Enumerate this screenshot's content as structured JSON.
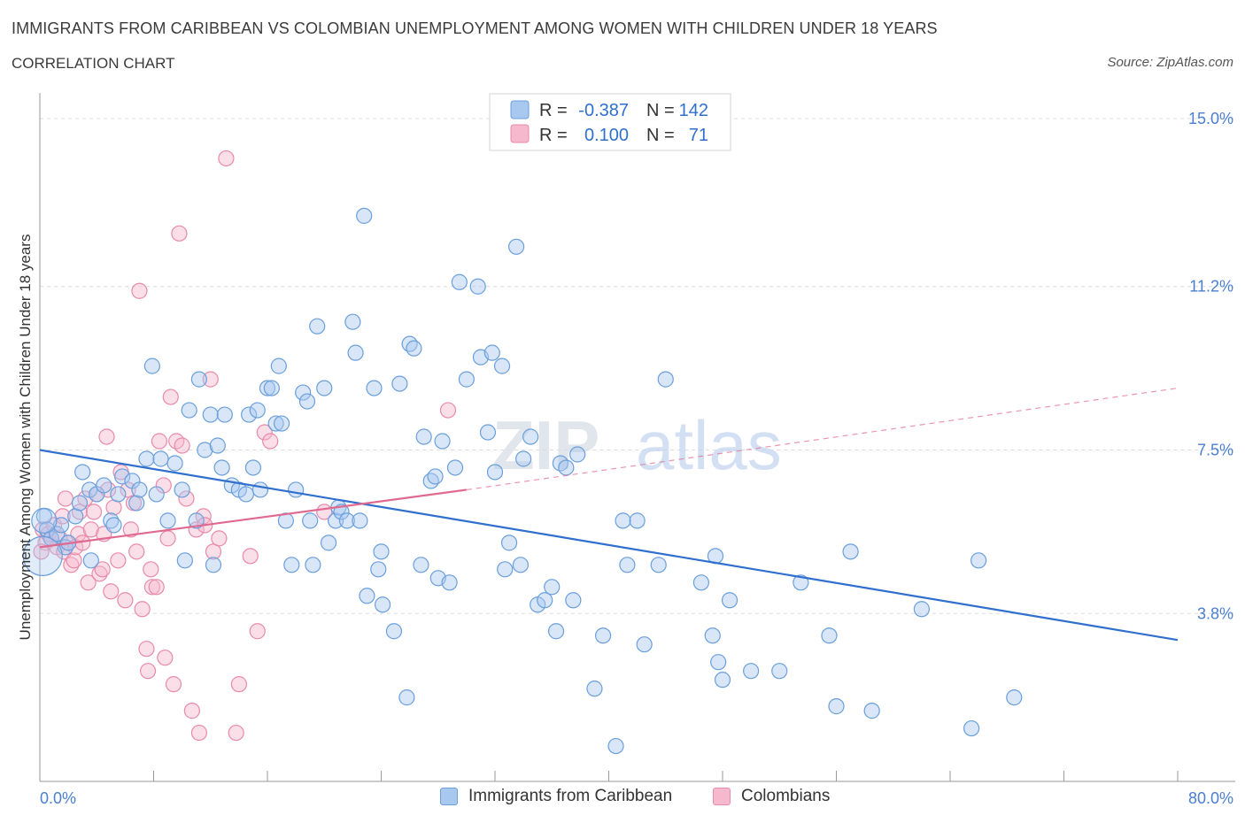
{
  "title": "IMMIGRANTS FROM CARIBBEAN VS COLOMBIAN UNEMPLOYMENT AMONG WOMEN WITH CHILDREN UNDER 18 YEARS",
  "subtitle": "CORRELATION CHART",
  "source": "Source: ZipAtlas.com",
  "watermark": {
    "zip": "ZIP",
    "atlas": "atlas"
  },
  "legend": {
    "r_label": "R =",
    "n_label": "N =",
    "series": [
      {
        "r": "-0.387",
        "n": "142"
      },
      {
        "r": "0.100",
        "n": "71"
      }
    ]
  },
  "bottom_legend": [
    "Immigrants from Caribbean",
    "Colombians"
  ],
  "colors": {
    "blue_fill": "#a9c8f0",
    "blue_stroke": "#6a9fdc",
    "blue_line": "#2f6fce",
    "pink_fill": "#f6b8cc",
    "pink_stroke": "#e88aa9",
    "pink_line": "#e0698f",
    "axis_text": "#4a7fd1"
  },
  "chart_data": {
    "type": "scatter",
    "title": "IMMIGRANTS FROM CARIBBEAN VS COLOMBIAN UNEMPLOYMENT AMONG WOMEN WITH CHILDREN UNDER 18 YEARS",
    "xlabel": "",
    "ylabel": "Unemployment Among Women with Children Under 18 years",
    "xlim": [
      0,
      80
    ],
    "ylim": [
      0,
      15.4
    ],
    "x_tick_labels": [
      "0.0%",
      "80.0%"
    ],
    "y_ticks": [
      3.8,
      7.5,
      11.2,
      15.0
    ],
    "y_tick_labels": [
      "3.8%",
      "7.5%",
      "11.2%",
      "15.0%"
    ],
    "grid": true,
    "legend_position": "top-center",
    "series": [
      {
        "name": "Immigrants from Caribbean",
        "r": -0.387,
        "n": 142,
        "trend": {
          "x": [
            0,
            80
          ],
          "y": [
            7.5,
            3.2
          ],
          "dashed": false
        },
        "points": [
          [
            0.3,
            6.0
          ],
          [
            0.5,
            5.7
          ],
          [
            0.8,
            5.5
          ],
          [
            1.2,
            5.6
          ],
          [
            1.5,
            5.8
          ],
          [
            1.8,
            5.3
          ],
          [
            2.0,
            5.4
          ],
          [
            2.5,
            6.0
          ],
          [
            2.8,
            6.3
          ],
          [
            3.0,
            7.0
          ],
          [
            3.5,
            6.6
          ],
          [
            3.6,
            5.0
          ],
          [
            4.0,
            6.5
          ],
          [
            4.5,
            6.7
          ],
          [
            5.0,
            5.9
          ],
          [
            5.2,
            5.8
          ],
          [
            5.5,
            6.5
          ],
          [
            5.8,
            6.9
          ],
          [
            6.5,
            6.8
          ],
          [
            6.8,
            6.3
          ],
          [
            7.0,
            6.6
          ],
          [
            7.5,
            7.3
          ],
          [
            7.9,
            9.4
          ],
          [
            8.2,
            6.5
          ],
          [
            8.5,
            7.3
          ],
          [
            9.0,
            5.9
          ],
          [
            9.5,
            7.2
          ],
          [
            10.0,
            6.6
          ],
          [
            10.2,
            5.0
          ],
          [
            10.5,
            8.4
          ],
          [
            11.0,
            5.9
          ],
          [
            11.2,
            9.1
          ],
          [
            11.6,
            7.5
          ],
          [
            12.0,
            8.3
          ],
          [
            12.2,
            4.9
          ],
          [
            12.5,
            7.6
          ],
          [
            12.8,
            7.1
          ],
          [
            13.0,
            8.3
          ],
          [
            13.5,
            6.7
          ],
          [
            14.0,
            6.6
          ],
          [
            14.5,
            6.5
          ],
          [
            14.7,
            8.3
          ],
          [
            15.0,
            7.1
          ],
          [
            15.3,
            8.4
          ],
          [
            15.5,
            6.6
          ],
          [
            16.0,
            8.9
          ],
          [
            16.3,
            8.9
          ],
          [
            16.6,
            8.1
          ],
          [
            16.8,
            9.4
          ],
          [
            17.0,
            8.1
          ],
          [
            17.3,
            5.9
          ],
          [
            17.7,
            4.9
          ],
          [
            18.0,
            6.6
          ],
          [
            18.5,
            8.8
          ],
          [
            18.8,
            8.6
          ],
          [
            19.0,
            5.9
          ],
          [
            19.2,
            4.9
          ],
          [
            19.5,
            10.3
          ],
          [
            20.0,
            8.9
          ],
          [
            20.3,
            5.4
          ],
          [
            20.8,
            5.9
          ],
          [
            21.0,
            6.2
          ],
          [
            21.2,
            6.1
          ],
          [
            21.6,
            5.9
          ],
          [
            22.0,
            10.4
          ],
          [
            22.2,
            9.7
          ],
          [
            22.5,
            5.9
          ],
          [
            22.8,
            12.8
          ],
          [
            23.0,
            4.2
          ],
          [
            23.5,
            8.9
          ],
          [
            23.8,
            4.8
          ],
          [
            24.0,
            5.2
          ],
          [
            24.1,
            4.0
          ],
          [
            24.9,
            3.4
          ],
          [
            25.3,
            9.0
          ],
          [
            25.8,
            1.9
          ],
          [
            26.0,
            9.9
          ],
          [
            26.3,
            9.8
          ],
          [
            26.8,
            4.9
          ],
          [
            27.0,
            7.8
          ],
          [
            27.5,
            6.8
          ],
          [
            27.8,
            6.9
          ],
          [
            28.0,
            4.6
          ],
          [
            28.3,
            7.7
          ],
          [
            28.8,
            4.5
          ],
          [
            29.2,
            7.1
          ],
          [
            29.5,
            11.3
          ],
          [
            30.0,
            9.1
          ],
          [
            30.8,
            11.2
          ],
          [
            31.0,
            9.6
          ],
          [
            31.5,
            7.9
          ],
          [
            31.8,
            9.7
          ],
          [
            32.0,
            7.0
          ],
          [
            32.5,
            9.4
          ],
          [
            32.7,
            4.8
          ],
          [
            33.0,
            5.4
          ],
          [
            33.5,
            12.1
          ],
          [
            33.8,
            4.9
          ],
          [
            34.0,
            7.3
          ],
          [
            34.5,
            7.8
          ],
          [
            35.0,
            4.0
          ],
          [
            35.5,
            4.1
          ],
          [
            36.0,
            4.4
          ],
          [
            36.3,
            3.4
          ],
          [
            36.6,
            7.2
          ],
          [
            37.0,
            7.1
          ],
          [
            37.5,
            4.1
          ],
          [
            37.8,
            7.4
          ],
          [
            39.0,
            2.1
          ],
          [
            39.6,
            3.3
          ],
          [
            40.5,
            0.8
          ],
          [
            41.0,
            5.9
          ],
          [
            41.3,
            4.9
          ],
          [
            42.0,
            5.9
          ],
          [
            42.5,
            3.1
          ],
          [
            43.5,
            4.9
          ],
          [
            44.0,
            9.1
          ],
          [
            46.5,
            4.5
          ],
          [
            47.3,
            3.3
          ],
          [
            47.5,
            5.1
          ],
          [
            47.7,
            2.7
          ],
          [
            48.0,
            2.3
          ],
          [
            48.5,
            4.1
          ],
          [
            50.0,
            2.5
          ],
          [
            52.0,
            2.5
          ],
          [
            53.5,
            4.5
          ],
          [
            55.5,
            3.3
          ],
          [
            56.0,
            1.7
          ],
          [
            57.0,
            5.2
          ],
          [
            58.5,
            1.6
          ],
          [
            62.0,
            3.9
          ],
          [
            65.5,
            1.2
          ],
          [
            66.0,
            5.0
          ],
          [
            68.5,
            1.9
          ]
        ]
      },
      {
        "name": "Colombians",
        "r": 0.1,
        "n": 71,
        "trend": {
          "x": [
            0,
            30,
            80
          ],
          "y": [
            5.3,
            6.6,
            8.9
          ],
          "solid_until_x": 30
        },
        "points": [
          [
            0.2,
            5.7
          ],
          [
            0.4,
            5.4
          ],
          [
            0.6,
            5.6
          ],
          [
            0.8,
            5.5
          ],
          [
            1.0,
            5.8
          ],
          [
            1.2,
            5.3
          ],
          [
            1.4,
            5.5
          ],
          [
            1.6,
            6.0
          ],
          [
            1.7,
            5.2
          ],
          [
            1.8,
            6.4
          ],
          [
            2.0,
            5.4
          ],
          [
            2.2,
            4.9
          ],
          [
            2.4,
            5.0
          ],
          [
            2.5,
            5.3
          ],
          [
            2.7,
            5.6
          ],
          [
            2.8,
            6.1
          ],
          [
            3.0,
            5.4
          ],
          [
            3.2,
            6.4
          ],
          [
            3.4,
            4.5
          ],
          [
            3.6,
            5.7
          ],
          [
            3.8,
            6.1
          ],
          [
            4.0,
            6.5
          ],
          [
            4.2,
            4.7
          ],
          [
            4.4,
            4.8
          ],
          [
            4.5,
            5.6
          ],
          [
            4.7,
            7.8
          ],
          [
            4.8,
            6.6
          ],
          [
            5.0,
            4.3
          ],
          [
            5.2,
            6.2
          ],
          [
            5.5,
            5.0
          ],
          [
            5.7,
            7.0
          ],
          [
            6.0,
            4.1
          ],
          [
            6.2,
            6.6
          ],
          [
            6.4,
            5.7
          ],
          [
            6.6,
            6.3
          ],
          [
            6.8,
            5.2
          ],
          [
            7.0,
            11.1
          ],
          [
            7.2,
            3.9
          ],
          [
            7.5,
            3.0
          ],
          [
            7.6,
            2.5
          ],
          [
            7.8,
            4.8
          ],
          [
            7.9,
            4.4
          ],
          [
            8.2,
            4.4
          ],
          [
            8.4,
            7.7
          ],
          [
            8.7,
            6.7
          ],
          [
            8.8,
            2.8
          ],
          [
            9.0,
            5.5
          ],
          [
            9.2,
            8.7
          ],
          [
            9.4,
            2.2
          ],
          [
            9.6,
            7.7
          ],
          [
            9.8,
            12.4
          ],
          [
            10.0,
            7.6
          ],
          [
            10.3,
            6.4
          ],
          [
            10.7,
            1.6
          ],
          [
            11.0,
            5.7
          ],
          [
            11.2,
            1.1
          ],
          [
            11.5,
            6.0
          ],
          [
            11.6,
            5.8
          ],
          [
            12.0,
            9.1
          ],
          [
            12.2,
            5.2
          ],
          [
            12.6,
            5.5
          ],
          [
            13.1,
            14.1
          ],
          [
            13.8,
            1.1
          ],
          [
            14.0,
            2.2
          ],
          [
            14.8,
            5.1
          ],
          [
            15.3,
            3.4
          ],
          [
            15.8,
            7.9
          ],
          [
            16.2,
            7.7
          ],
          [
            20.0,
            6.1
          ],
          [
            28.7,
            8.4
          ],
          [
            0.1,
            5.2
          ]
        ]
      }
    ]
  }
}
